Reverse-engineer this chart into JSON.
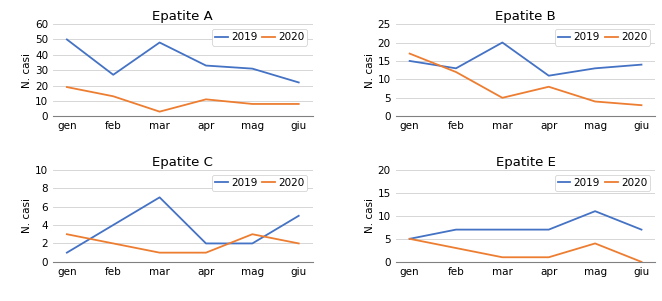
{
  "charts": [
    {
      "title": "Epatite A",
      "y2019": [
        50,
        27,
        48,
        33,
        31,
        22
      ],
      "y2020": [
        19,
        13,
        3,
        11,
        8,
        8
      ],
      "ylim": [
        0,
        60
      ],
      "yticks": [
        0,
        10,
        20,
        30,
        40,
        50,
        60
      ]
    },
    {
      "title": "Epatite B",
      "y2019": [
        15,
        13,
        20,
        11,
        13,
        14
      ],
      "y2020": [
        17,
        12,
        5,
        8,
        4,
        3
      ],
      "ylim": [
        0,
        25
      ],
      "yticks": [
        0,
        5,
        10,
        15,
        20,
        25
      ]
    },
    {
      "title": "Epatite C",
      "y2019": [
        1,
        4,
        7,
        2,
        2,
        5
      ],
      "y2020": [
        3,
        2,
        1,
        1,
        3,
        2
      ],
      "ylim": [
        0,
        10
      ],
      "yticks": [
        0,
        2,
        4,
        6,
        8,
        10
      ]
    },
    {
      "title": "Epatite E",
      "y2019": [
        5,
        7,
        7,
        7,
        11,
        7
      ],
      "y2020": [
        5,
        3,
        1,
        1,
        4,
        0
      ],
      "ylim": [
        0,
        20
      ],
      "yticks": [
        0,
        5,
        10,
        15,
        20
      ]
    }
  ],
  "xticklabels": [
    "gen",
    "feb",
    "mar",
    "apr",
    "mag",
    "giu"
  ],
  "color_2019": "#4472C4",
  "color_2020": "#ED7D31",
  "ylabel": "N. casi",
  "legend_labels": [
    "2019",
    "2020"
  ],
  "title_fontsize": 9.5,
  "axis_fontsize": 7.5,
  "legend_fontsize": 7.5,
  "bg_color": "#f2f2f2"
}
